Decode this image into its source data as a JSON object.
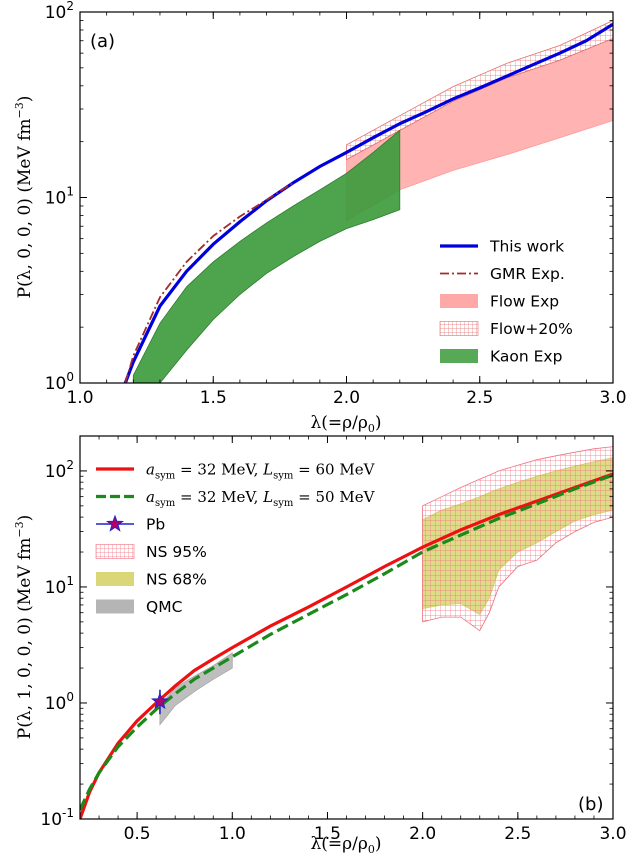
{
  "chart_data": [
    {
      "type": "line",
      "panel_label": "(a)",
      "xlabel": "λ(=ρ/ρ0)",
      "ylabel": "P(λ,0,0,0) (MeV fm⁻³)",
      "xlim": [
        1.0,
        3.0
      ],
      "ylim": [
        1,
        100
      ],
      "yscale": "log",
      "x_ticks": [
        "1.0",
        "1.5",
        "2.0",
        "2.5",
        "3.0"
      ],
      "y_ticks": [
        {
          "base": "10",
          "exp": "0"
        },
        {
          "base": "10",
          "exp": "1"
        },
        {
          "base": "10",
          "exp": "2"
        }
      ],
      "legend_position": "lower-right",
      "series": [
        {
          "name": "This work",
          "kind": "line",
          "color": "#0000dd",
          "x": [
            1.17,
            1.2,
            1.3,
            1.4,
            1.5,
            1.6,
            1.7,
            1.8,
            1.9,
            2.0,
            2.1,
            2.2,
            2.3,
            2.4,
            2.5,
            2.6,
            2.7,
            2.8,
            2.9,
            3.0
          ],
          "y": [
            1.0,
            1.3,
            2.6,
            4.0,
            5.6,
            7.4,
            9.6,
            12.0,
            14.7,
            17.5,
            21.0,
            25.0,
            29.0,
            34.0,
            39.0,
            45.0,
            52.0,
            60.0,
            70.0,
            86.0
          ]
        },
        {
          "name": "GMR Exp.",
          "kind": "dashdot",
          "color": "#a52a2a",
          "x": [
            1.17,
            1.2,
            1.3,
            1.4,
            1.5,
            1.6,
            1.7,
            1.8
          ],
          "y": [
            1.0,
            1.4,
            2.9,
            4.5,
            6.2,
            7.9,
            9.7,
            12.0
          ]
        },
        {
          "name": "Flow Exp",
          "kind": "band",
          "color": "#ff9999",
          "x": [
            2.0,
            2.2,
            2.4,
            2.6,
            2.8,
            3.0
          ],
          "lower": [
            7.5,
            11.0,
            14.0,
            17.0,
            21.0,
            26.0
          ],
          "upper": [
            16.0,
            23.0,
            33.0,
            44.0,
            55.0,
            72.0
          ]
        },
        {
          "name": "Flow+20%",
          "kind": "hatched-band",
          "color": "#e07070",
          "x": [
            2.0,
            2.2,
            2.4,
            2.6,
            2.8,
            3.0
          ],
          "lower": [
            16.0,
            23.0,
            33.0,
            44.0,
            55.0,
            72.0
          ],
          "upper": [
            19.2,
            27.6,
            39.6,
            52.8,
            66.0,
            90.0
          ]
        },
        {
          "name": "Kaon Exp",
          "kind": "band",
          "color": "#3a9a3a",
          "x": [
            1.2,
            1.3,
            1.4,
            1.5,
            1.6,
            1.7,
            1.8,
            1.9,
            2.0,
            2.1,
            2.2
          ],
          "lower": [
            0.9,
            1.0,
            1.5,
            2.2,
            3.0,
            3.9,
            4.8,
            5.8,
            6.8,
            7.6,
            8.6
          ],
          "upper": [
            1.1,
            2.1,
            3.3,
            4.5,
            5.8,
            7.3,
            9.0,
            11.0,
            13.5,
            17.5,
            23.0
          ]
        }
      ],
      "legend": [
        {
          "label": "This work",
          "kind": "line",
          "color": "#0000dd"
        },
        {
          "label": "GMR Exp.",
          "kind": "dashdot",
          "color": "#a52a2a"
        },
        {
          "label": "Flow Exp",
          "kind": "band",
          "color": "#ff9999"
        },
        {
          "label": "Flow+20%",
          "kind": "hatched-band",
          "color": "#e07070"
        },
        {
          "label": "Kaon Exp",
          "kind": "band",
          "color": "#3a9a3a"
        }
      ]
    },
    {
      "type": "line",
      "panel_label": "(b)",
      "xlabel": "λ(=ρ/ρ0)",
      "ylabel": "P(λ,1,0,0,0) (MeV fm⁻³)",
      "xlim": [
        0.2,
        3.0
      ],
      "ylim": [
        0.1,
        200
      ],
      "yscale": "log",
      "x_ticks": [
        "0.5",
        "1.0",
        "1.5",
        "2.0",
        "2.5",
        "3.0"
      ],
      "y_ticks": [
        {
          "base": "10",
          "exp": "-1"
        },
        {
          "base": "10",
          "exp": "0"
        },
        {
          "base": "10",
          "exp": "1"
        },
        {
          "base": "10",
          "exp": "2"
        }
      ],
      "legend_position": "top-left",
      "series": [
        {
          "name": "a_sym = 32 MeV, L_sym = 60 MeV",
          "kind": "line",
          "color": "#ee1111",
          "x": [
            0.2,
            0.25,
            0.3,
            0.4,
            0.5,
            0.6,
            0.7,
            0.8,
            0.9,
            1.0,
            1.2,
            1.4,
            1.6,
            1.8,
            2.0,
            2.2,
            2.4,
            2.6,
            2.8,
            3.0
          ],
          "y": [
            0.1,
            0.17,
            0.25,
            0.45,
            0.7,
            1.0,
            1.4,
            1.9,
            2.4,
            3.0,
            4.6,
            6.7,
            10.0,
            15.0,
            22.0,
            31.0,
            42.0,
            55.0,
            72.0,
            94.0
          ]
        },
        {
          "name": "a_sym = 32 MeV, L_sym = 50 MeV",
          "kind": "dashed",
          "color": "#1a8a1a",
          "x": [
            0.2,
            0.25,
            0.3,
            0.4,
            0.5,
            0.6,
            0.7,
            0.8,
            0.9,
            1.0,
            1.2,
            1.4,
            1.6,
            1.8,
            2.0,
            2.2,
            2.4,
            2.6,
            2.8,
            3.0
          ],
          "y": [
            0.12,
            0.18,
            0.25,
            0.42,
            0.62,
            0.88,
            1.2,
            1.6,
            2.0,
            2.5,
            3.9,
            5.8,
            8.6,
            13.0,
            20.0,
            28.0,
            39.0,
            52.0,
            70.0,
            92.0
          ]
        },
        {
          "name": "Pb",
          "kind": "point",
          "color": "#b0006e",
          "x": [
            0.62
          ],
          "y": [
            1.03
          ],
          "yerr": [
            [
              0.8,
              1.3
            ]
          ]
        },
        {
          "name": "NS 95%",
          "kind": "hatched-band",
          "color": "#f07080",
          "x": [
            2.0,
            2.1,
            2.2,
            2.3,
            2.35,
            2.4,
            2.5,
            2.6,
            2.7,
            2.8,
            2.9,
            3.0
          ],
          "lower": [
            5.0,
            5.5,
            5.5,
            4.2,
            6.0,
            10.0,
            15.0,
            17.0,
            24.0,
            30.0,
            36.0,
            40.0
          ],
          "upper": [
            50.0,
            60.0,
            72.0,
            85.0,
            92.0,
            100.0,
            112.0,
            125.0,
            135.0,
            145.0,
            155.0,
            162.0
          ]
        },
        {
          "name": "NS 68%",
          "kind": "band",
          "color": "#d4d060",
          "x": [
            2.0,
            2.1,
            2.2,
            2.3,
            2.35,
            2.4,
            2.5,
            2.6,
            2.7,
            2.8,
            2.9,
            3.0
          ],
          "lower": [
            6.5,
            7.0,
            7.2,
            5.8,
            8.0,
            14.0,
            20.0,
            24.0,
            30.0,
            37.0,
            42.0,
            46.0
          ],
          "upper": [
            38.0,
            46.0,
            52.0,
            60.0,
            65.0,
            70.0,
            80.0,
            90.0,
            100.0,
            110.0,
            120.0,
            130.0
          ]
        },
        {
          "name": "QMC",
          "kind": "band",
          "color": "#a8a8a8",
          "x": [
            0.62,
            0.7,
            0.8,
            0.9,
            1.0
          ],
          "lower": [
            0.65,
            0.95,
            1.25,
            1.6,
            2.0
          ],
          "upper": [
            0.95,
            1.35,
            1.7,
            2.1,
            2.7
          ]
        }
      ],
      "legend": [
        {
          "label_parts": [
            "a",
            "sym",
            " = 32 MeV, ",
            "L",
            "sym",
            " = 60 MeV"
          ],
          "kind": "line",
          "color": "#ee1111"
        },
        {
          "label_parts": [
            "a",
            "sym",
            " = 32 MeV, ",
            "L",
            "sym",
            " = 50 MeV"
          ],
          "kind": "dashed",
          "color": "#1a8a1a"
        },
        {
          "label": "Pb",
          "kind": "point",
          "color": "#b0006e"
        },
        {
          "label": "NS 95%",
          "kind": "hatched-band",
          "color": "#f07080"
        },
        {
          "label": "NS 68%",
          "kind": "band",
          "color": "#d4d060"
        },
        {
          "label": "QMC",
          "kind": "band",
          "color": "#a8a8a8"
        }
      ]
    }
  ]
}
